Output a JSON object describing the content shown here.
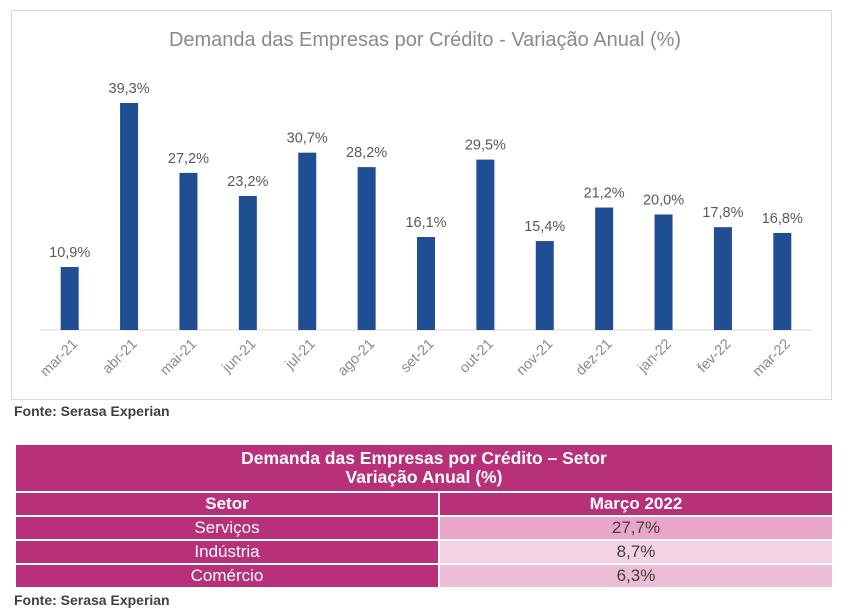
{
  "chart_data": {
    "type": "bar",
    "title": "Demanda das Empresas por Crédito - Variação Anual (%)",
    "categories": [
      "mar-21",
      "abr-21",
      "mai-21",
      "jun-21",
      "jul-21",
      "ago-21",
      "set-21",
      "out-21",
      "nov-21",
      "dez-21",
      "jan-22",
      "fev-22",
      "mar-22"
    ],
    "values": [
      10.9,
      39.3,
      27.2,
      23.2,
      30.7,
      28.2,
      16.1,
      29.5,
      15.4,
      21.2,
      20.0,
      17.8,
      16.8
    ],
    "value_labels": [
      "10,9%",
      "39,3%",
      "27,2%",
      "23,2%",
      "30,7%",
      "28,2%",
      "16,1%",
      "29,5%",
      "15,4%",
      "21,2%",
      "20,0%",
      "17,8%",
      "16,8%"
    ],
    "ylim": [
      0,
      39.3
    ],
    "bar_color": "#1f4e92",
    "grid": false
  },
  "chart_source": "Fonte: Serasa Experian",
  "table": {
    "title_line1": "Demanda das Empresas por Crédito – Setor",
    "title_line2": "Variação Anual (%)",
    "col_sector": "Setor",
    "col_value": "Março 2022",
    "rows": [
      {
        "sector": "Serviços",
        "value": "27,7%",
        "color": "#eaa6c8"
      },
      {
        "sector": "Indústria",
        "value": "8,7%",
        "color": "#f3d2e3"
      },
      {
        "sector": "Comércio",
        "value": "6,3%",
        "color": "#edbcd6"
      }
    ],
    "header_color": "#b9307a"
  },
  "table_source": "Fonte: Serasa Experian"
}
